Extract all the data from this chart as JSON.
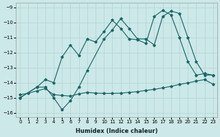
{
  "xlabel": "Humidex (Indice chaleur)",
  "xlim": [
    -0.5,
    23.5
  ],
  "ylim": [
    -16.3,
    -8.7
  ],
  "yticks": [
    -16,
    -15,
    -14,
    -13,
    -12,
    -11,
    -10,
    -9
  ],
  "xticks": [
    0,
    1,
    2,
    3,
    4,
    5,
    6,
    7,
    8,
    9,
    10,
    11,
    12,
    13,
    14,
    15,
    16,
    17,
    18,
    19,
    20,
    21,
    22,
    23
  ],
  "bg_color": "#cce8e8",
  "grid_color": "#b0d4d4",
  "line_color": "#1a6666",
  "line1_x": [
    0,
    1,
    2,
    3,
    4,
    5,
    6,
    7,
    8,
    9,
    10,
    11,
    12,
    13,
    14,
    15,
    16,
    17,
    18,
    19,
    20,
    21,
    22,
    23
  ],
  "line1_y": [
    -14.8,
    -14.7,
    -14.55,
    -14.4,
    -14.8,
    -14.85,
    -14.9,
    -14.75,
    -14.65,
    -14.7,
    -14.72,
    -14.72,
    -14.7,
    -14.65,
    -14.6,
    -14.52,
    -14.45,
    -14.35,
    -14.25,
    -14.12,
    -14.02,
    -13.9,
    -13.8,
    -14.1
  ],
  "line2_x": [
    0,
    2,
    3,
    4,
    5,
    6,
    7,
    8,
    10,
    11,
    12,
    13,
    14,
    15,
    16,
    17,
    18,
    19,
    20,
    21,
    22,
    23
  ],
  "line2_y": [
    -15.0,
    -14.3,
    -14.3,
    -15.0,
    -15.8,
    -15.2,
    -14.3,
    -13.2,
    -11.1,
    -10.5,
    -9.75,
    -10.4,
    -11.1,
    -11.1,
    -11.5,
    -9.6,
    -9.25,
    -9.4,
    -11.0,
    -12.6,
    -13.5,
    -13.5
  ],
  "line3_x": [
    0,
    2,
    3,
    4,
    5,
    6,
    7,
    8,
    9,
    10,
    11,
    12,
    13,
    14,
    15,
    16,
    17,
    18,
    19,
    20,
    21,
    22,
    23
  ],
  "line3_y": [
    -15.0,
    -14.3,
    -13.8,
    -14.0,
    -12.3,
    -11.5,
    -12.2,
    -11.1,
    -11.3,
    -10.6,
    -9.85,
    -10.4,
    -11.1,
    -11.15,
    -11.4,
    -9.6,
    -9.2,
    -9.5,
    -11.0,
    -12.6,
    -13.5,
    -13.4,
    -13.5
  ]
}
